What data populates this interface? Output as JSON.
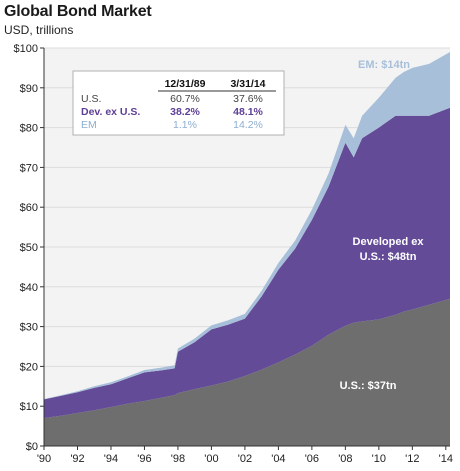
{
  "header": {
    "title": "Global Bond Market",
    "subtitle": "USD, trillions"
  },
  "colors": {
    "us": "#6e6e6e",
    "dev_ex_us": "#634b98",
    "em": "#a8bfd9",
    "plot_background": "#f3f3f3"
  },
  "chart_data": {
    "type": "area",
    "stacked": true,
    "title": "Global Bond Market",
    "ylabel": "USD, trillions",
    "xlim": [
      1990,
      2014.25
    ],
    "ylim": [
      0,
      100
    ],
    "xticks": [
      1990,
      1992,
      1994,
      1996,
      1998,
      2000,
      2002,
      2004,
      2006,
      2008,
      2010,
      2012,
      2014
    ],
    "xtick_labels": [
      "'90",
      "'92",
      "'94",
      "'96",
      "'98",
      "'00",
      "'02",
      "'04",
      "'06",
      "'08",
      "'10",
      "'12",
      "'14"
    ],
    "yticks": [
      0,
      10,
      20,
      30,
      40,
      50,
      60,
      70,
      80,
      90,
      100
    ],
    "ytick_labels": [
      "$0",
      "$10",
      "$20",
      "$30",
      "$40",
      "$50",
      "$60",
      "$70",
      "$80",
      "$90",
      "$100"
    ],
    "x": [
      1990,
      1991,
      1992,
      1993,
      1994,
      1995,
      1996,
      1997,
      1997.8,
      1998,
      1999,
      2000,
      2001,
      2002,
      2003,
      2004,
      2005,
      2006,
      2007,
      2008,
      2008.5,
      2009,
      2010,
      2011,
      2011.5,
      2012,
      2013,
      2014.25
    ],
    "series": [
      {
        "name": "U.S.",
        "values": [
          7,
          7.6,
          8.3,
          9,
          9.8,
          10.6,
          11.3,
          12.1,
          12.8,
          13.3,
          14.3,
          15.2,
          16.2,
          17.6,
          19.2,
          21,
          23,
          25.2,
          28,
          30.2,
          31,
          31.3,
          31.8,
          33,
          33.8,
          34.3,
          35.5,
          37
        ]
      },
      {
        "name": "Dev. ex U.S.",
        "values": [
          4.7,
          5,
          5.2,
          5.6,
          5.7,
          6.4,
          7.2,
          6.9,
          6.7,
          10.4,
          11.8,
          14.1,
          14.3,
          14.4,
          18.4,
          23.3,
          26.6,
          31.6,
          37.2,
          46,
          41.5,
          46,
          48.2,
          50,
          49.2,
          48.7,
          47.5,
          48
        ]
      },
      {
        "name": "EM",
        "values": [
          0.1,
          0.15,
          0.25,
          0.4,
          0.5,
          0.5,
          0.6,
          0.7,
          0.8,
          0.8,
          0.9,
          1,
          1.1,
          1.2,
          1.4,
          1.7,
          2,
          2.6,
          3.3,
          4.5,
          4.8,
          5.7,
          7.5,
          9.5,
          11,
          12,
          13,
          14
        ]
      }
    ],
    "annotations": {
      "em": "EM: $14tn",
      "dev_line1": "Developed ex",
      "dev_line2": "U.S.: $48tn",
      "us": "U.S.: $37tn"
    },
    "legend_table": {
      "columns": [
        "",
        "12/31/89",
        "3/31/14"
      ],
      "rows": [
        {
          "label": "U.S.",
          "v1989": "60.7%",
          "v2014": "37.6%"
        },
        {
          "label": "Dev. ex U.S.",
          "v1989": "38.2%",
          "v2014": "48.1%"
        },
        {
          "label": "EM",
          "v1989": "1.1%",
          "v2014": "14.2%"
        }
      ]
    }
  }
}
